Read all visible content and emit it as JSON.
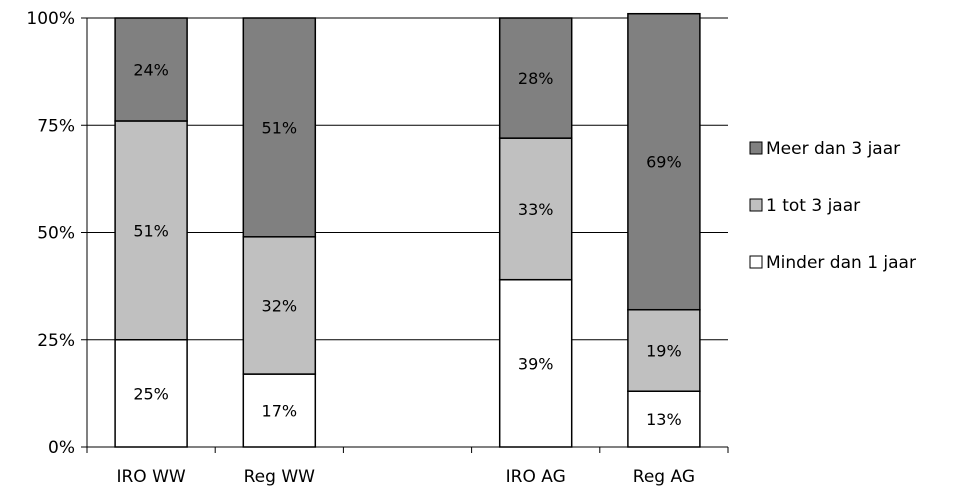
{
  "chart_data": {
    "type": "bar",
    "stacked": true,
    "categories": [
      "IRO WW",
      "Reg WW",
      "",
      "IRO AG",
      "Reg AG"
    ],
    "series": [
      {
        "name": "Minder dan 1 jaar",
        "values": [
          25,
          17,
          null,
          39,
          13
        ],
        "labels": [
          "25%",
          "17%",
          "",
          "39%",
          "13%"
        ],
        "color": "#ffffff"
      },
      {
        "name": "1 tot 3 jaar",
        "values": [
          51,
          32,
          null,
          33,
          19
        ],
        "labels": [
          "51%",
          "32%",
          "",
          "33%",
          "19%"
        ],
        "color": "#c0c0c0"
      },
      {
        "name": "Meer dan 3 jaar",
        "values": [
          24,
          51,
          null,
          28,
          69
        ],
        "labels": [
          "24%",
          "51%",
          "",
          "28%",
          "69%"
        ],
        "color": "#808080"
      }
    ],
    "ylim": [
      0,
      100
    ],
    "y_ticks": [
      "0%",
      "25%",
      "50%",
      "75%",
      "100%"
    ],
    "y_tick_values": [
      0,
      25,
      50,
      75,
      100
    ],
    "grid": true,
    "legend_position": "right",
    "legend_order": [
      "Meer dan 3 jaar",
      "1 tot 3 jaar",
      "Minder dan 1 jaar"
    ],
    "title": "",
    "xlabel": "",
    "ylabel": ""
  }
}
